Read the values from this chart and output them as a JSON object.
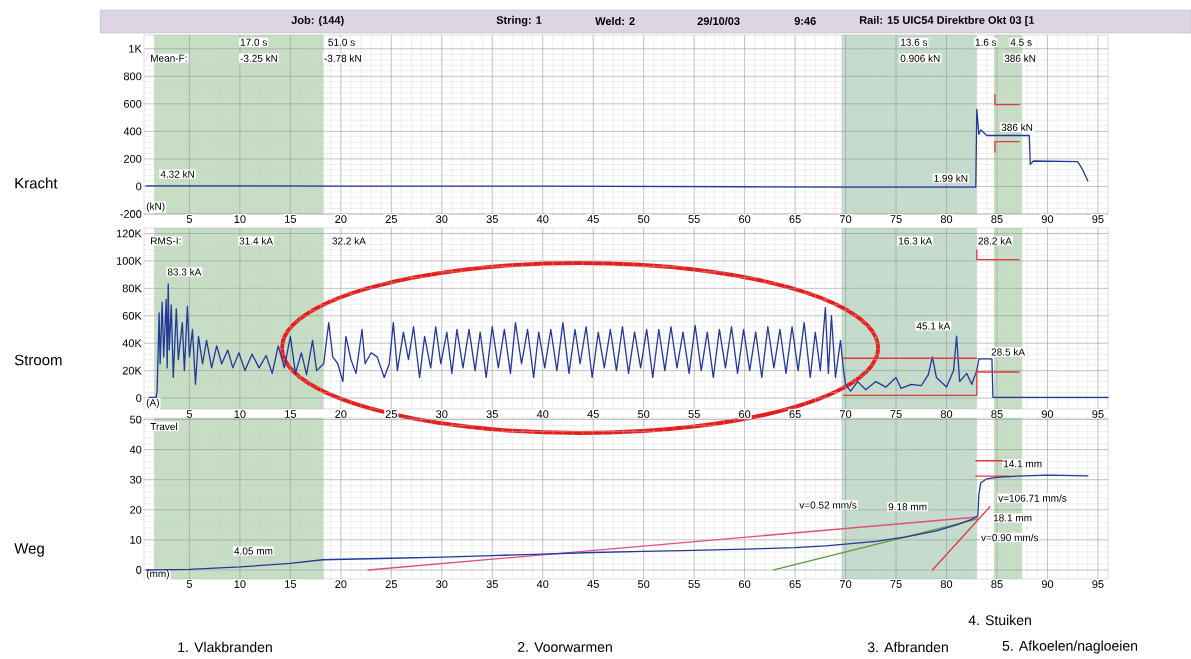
{
  "chart_data": [
    {
      "type": "line",
      "ylabel": "Kracht",
      "xlim": [
        0.5,
        96
      ],
      "ylim": [
        -200,
        1100
      ],
      "xticks": [
        5,
        10,
        15,
        20,
        25,
        30,
        35,
        40,
        45,
        50,
        55,
        60,
        65,
        70,
        75,
        80,
        85,
        90,
        95
      ],
      "yticks": [
        -200,
        0,
        200,
        400,
        600,
        800,
        {
          "value": 1000,
          "label": "1K"
        }
      ],
      "grid": true,
      "bands": [
        {
          "axis": "x",
          "from": 1.5,
          "to": 18.3,
          "color": "#c6dec4"
        },
        {
          "axis": "x",
          "from": 69.6,
          "to": 83.0,
          "color": "#c3dccb"
        },
        {
          "axis": "x",
          "from": 84.7,
          "to": 87.5,
          "color": "#c6dec4"
        }
      ],
      "annotations": [
        "Job: (144)",
        "String: 1",
        "Weld: 2",
        "29/10/03",
        "9:46",
        "Rail: 15  UIC54 Direktbre Okt 03 [1",
        "Mean-F:",
        "17.0 s",
        "-3.25 kN",
        "51.0 s",
        "-3.78 kN",
        "13.6 s",
        "0.906 kN",
        "1.6 s",
        "4.5 s",
        "386 kN",
        "386 kN",
        "1.99 kN",
        "4.32 kN",
        "(kN)"
      ],
      "series": [
        {
          "color": "#22389a",
          "x": [
            0.7,
            10,
            20,
            30,
            40,
            50,
            60,
            69.6,
            75,
            82.9,
            83,
            83.2,
            83.4,
            83.7,
            84,
            88.2,
            88.3,
            88.6,
            93,
            93.5,
            94
          ],
          "values": [
            5,
            5,
            3,
            3,
            2,
            0,
            -2,
            -5,
            -5,
            -5,
            560,
            380,
            410,
            390,
            370,
            370,
            160,
            185,
            180,
            120,
            40
          ]
        },
        {
          "color": "#e03a3a",
          "x": [
            84.8,
            84.8,
            87.2
          ],
          "values": [
            667,
            595,
            595
          ]
        },
        {
          "color": "#e03a3a",
          "x": [
            84.8,
            84.8,
            87.2
          ],
          "values": [
            250,
            325,
            325
          ]
        }
      ]
    },
    {
      "type": "line",
      "ylabel": "Stroom",
      "xlim": [
        0.5,
        96
      ],
      "ylim": [
        -8000,
        124000
      ],
      "xticks": [
        5,
        10,
        15,
        20,
        25,
        30,
        35,
        40,
        45,
        50,
        55,
        60,
        65,
        70,
        75,
        80,
        85,
        90,
        95
      ],
      "yticks": [
        0,
        {
          "value": 20000,
          "label": "20K"
        },
        {
          "value": 40000,
          "label": "40K"
        },
        {
          "value": 60000,
          "label": "60K"
        },
        {
          "value": 80000,
          "label": "80K"
        },
        {
          "value": 100000,
          "label": "100K"
        },
        {
          "value": 120000,
          "label": "120K"
        }
      ],
      "grid": true,
      "bands": [
        {
          "axis": "x",
          "from": 1.5,
          "to": 18.3,
          "color": "#c6dec4"
        },
        {
          "axis": "x",
          "from": 69.6,
          "to": 83.0,
          "color": "#c3dccb"
        },
        {
          "axis": "x",
          "from": 84.7,
          "to": 87.5,
          "color": "#c6dec4"
        }
      ],
      "annotations": [
        "RMS-I:",
        "31.4 kA",
        "32.2 kA",
        "83.3 kA",
        "16.3 kA",
        "28.2 kA",
        "45.1 kA",
        "28.5 kA",
        "(A)"
      ],
      "series": [
        {
          "color": "#22389a",
          "x": [
            1.0,
            1.7,
            1.8,
            2.0,
            2.1,
            2.3,
            2.45,
            2.7,
            2.8,
            2.9,
            3.0,
            3.2,
            3.4,
            3.7,
            3.9,
            4.3,
            4.5,
            4.8,
            5.0,
            5.3,
            5.6,
            5.9,
            6.3,
            6.7,
            7.2,
            7.7,
            8.2,
            8.8,
            9.3,
            9.9,
            10.5,
            11.2,
            11.9,
            12.6,
            13.2,
            13.8,
            14.4,
            15.0,
            15.5,
            16.1,
            16.6,
            17.2,
            17.6,
            18.3,
            18.8,
            19.2,
            19.7,
            20.2,
            20.5,
            21.0,
            21.5,
            22.1,
            22.4,
            23.0,
            23.6,
            24.3,
            24.8,
            25.2,
            25.6,
            26.2,
            26.7,
            27.2,
            27.8,
            28.3,
            28.9,
            29.4,
            29.9,
            30.5,
            31.0,
            31.5,
            32.1,
            32.7,
            33.3,
            33.8,
            34.4,
            35.0,
            35.6,
            36.2,
            36.8,
            37.3,
            37.9,
            38.5,
            39.1,
            39.6,
            40.2,
            40.8,
            41.4,
            42.0,
            42.6,
            43.2,
            43.7,
            44.3,
            44.9,
            45.5,
            46.1,
            46.7,
            47.3,
            47.9,
            48.5,
            49.1,
            49.7,
            50.3,
            50.9,
            51.5,
            52.1,
            52.7,
            53.3,
            53.9,
            54.5,
            55.1,
            55.7,
            56.3,
            56.9,
            57.5,
            58.1,
            58.7,
            59.3,
            59.9,
            60.5,
            61.1,
            61.7,
            62.3,
            62.9,
            63.5,
            64.1,
            64.7,
            65.3,
            65.9,
            66.5,
            67.0,
            67.5,
            68.0,
            68.3,
            68.6,
            69.0,
            69.5,
            69.8,
            70.0,
            70.5,
            71.2,
            72.0,
            73.0,
            74.0,
            75.0,
            75.5,
            76.5,
            77.5,
            78.2,
            78.6,
            79.0,
            80.0,
            80.7,
            81.0,
            81.3,
            82.0,
            82.5,
            83.0,
            83.2,
            84.5,
            84.6,
            96
          ],
          "values": [
            500,
            500,
            5000,
            62000,
            25000,
            70000,
            30000,
            72000,
            22000,
            83300,
            35000,
            68000,
            15000,
            65000,
            28000,
            55000,
            20000,
            67000,
            30000,
            50000,
            10000,
            45000,
            25000,
            42000,
            22000,
            38000,
            25000,
            35000,
            22000,
            33000,
            20000,
            32000,
            22000,
            31000,
            18000,
            38000,
            22000,
            45000,
            18000,
            33000,
            17000,
            42000,
            20000,
            25000,
            55000,
            30000,
            25000,
            12000,
            45000,
            28000,
            18000,
            50000,
            25000,
            33000,
            30000,
            15000,
            25000,
            55000,
            20000,
            48000,
            28000,
            52000,
            15000,
            45000,
            22000,
            52000,
            25000,
            48000,
            18000,
            50000,
            22000,
            50000,
            20000,
            48000,
            15000,
            52000,
            22000,
            50000,
            18000,
            55000,
            25000,
            50000,
            15000,
            48000,
            22000,
            50000,
            20000,
            55000,
            18000,
            50000,
            25000,
            52000,
            15000,
            48000,
            22000,
            50000,
            20000,
            52000,
            18000,
            48000,
            22000,
            50000,
            15000,
            50000,
            20000,
            52000,
            22000,
            48000,
            18000,
            53000,
            20000,
            48000,
            15000,
            50000,
            22000,
            52000,
            18000,
            50000,
            20000,
            48000,
            15000,
            52000,
            22000,
            50000,
            18000,
            52000,
            20000,
            55000,
            15000,
            48000,
            20000,
            66000,
            18000,
            60000,
            15000,
            42000,
            20000,
            10000,
            5000,
            12000,
            6000,
            12000,
            8000,
            15000,
            7000,
            10000,
            9000,
            17000,
            30000,
            15000,
            8000,
            20000,
            45100,
            12000,
            18000,
            10000,
            20000,
            28500,
            28500,
            500,
            500
          ]
        },
        {
          "color": "#e03a3a",
          "x": [
            69.8,
            83
          ],
          "values": [
            29000,
            29000
          ]
        },
        {
          "color": "#e03a3a",
          "x": [
            69.8,
            83,
            83,
            87.2
          ],
          "values": [
            2000,
            2000,
            19000,
            19000
          ]
        },
        {
          "color": "#e03a3a",
          "x": [
            83,
            83,
            87.2
          ],
          "values": [
            108000,
            101000,
            101000
          ]
        }
      ]
    },
    {
      "type": "line",
      "ylabel": "Weg",
      "xlim": [
        0.5,
        96
      ],
      "ylim": [
        -3,
        50.5
      ],
      "xticks": [
        5,
        10,
        15,
        20,
        25,
        30,
        35,
        40,
        45,
        50,
        55,
        60,
        65,
        70,
        75,
        80,
        85,
        90,
        95
      ],
      "yticks": [
        0,
        10,
        20,
        30,
        40,
        50
      ],
      "grid": true,
      "bands": [
        {
          "axis": "x",
          "from": 1.5,
          "to": 18.3,
          "color": "#c6dec4"
        },
        {
          "axis": "x",
          "from": 69.6,
          "to": 83.0,
          "color": "#c3dccb"
        },
        {
          "axis": "x",
          "from": 84.7,
          "to": 87.5,
          "color": "#c6dec4"
        }
      ],
      "annotations": [
        "1. Vlakbranden",
        "2. Voorwarmen",
        "3. Afbranden",
        "4. Stuiken",
        "5. Afkoelen/nagloeien",
        "Travel",
        "4.05 mm",
        "v=0.52 mm/s",
        "9.18 mm",
        "18.1 mm",
        "v=0.90 mm/s",
        "v=106.71 mm/s",
        "14.1 mm",
        "(mm)"
      ],
      "series": [
        {
          "color": "#e0507a",
          "x": [
            22.7,
            83.1
          ],
          "values": [
            0,
            17.6
          ]
        },
        {
          "color": "#5a9a3a",
          "x": [
            62.9,
            83.1
          ],
          "values": [
            0,
            17
          ]
        },
        {
          "color": "#e03a3a",
          "x": [
            78.6,
            84.3
          ],
          "values": [
            0,
            21
          ]
        },
        {
          "color": "#e03a3a",
          "x": [
            82.9,
            85.6
          ],
          "values": [
            36.3,
            36.3
          ]
        },
        {
          "color": "#e03a3a",
          "x": [
            82.9,
            86.2
          ],
          "values": [
            31.2,
            31.2
          ]
        },
        {
          "color": "#22389a",
          "x": [
            0.7,
            5,
            10,
            15,
            18.2,
            25,
            30,
            35,
            40,
            45,
            50,
            55,
            60,
            65,
            68,
            70,
            73,
            76,
            79,
            81,
            82.5,
            83.1,
            83.2,
            83.4,
            84,
            85,
            87,
            90,
            94
          ],
          "values": [
            0,
            0.2,
            1,
            2.2,
            3.4,
            3.9,
            4.3,
            4.8,
            5.3,
            5.8,
            6.2,
            6.5,
            6.9,
            7.4,
            8,
            8.6,
            9.5,
            11,
            13,
            15,
            16.8,
            18,
            25,
            29,
            30.3,
            30.8,
            31.2,
            31.5,
            31.3
          ]
        }
      ]
    }
  ]
}
